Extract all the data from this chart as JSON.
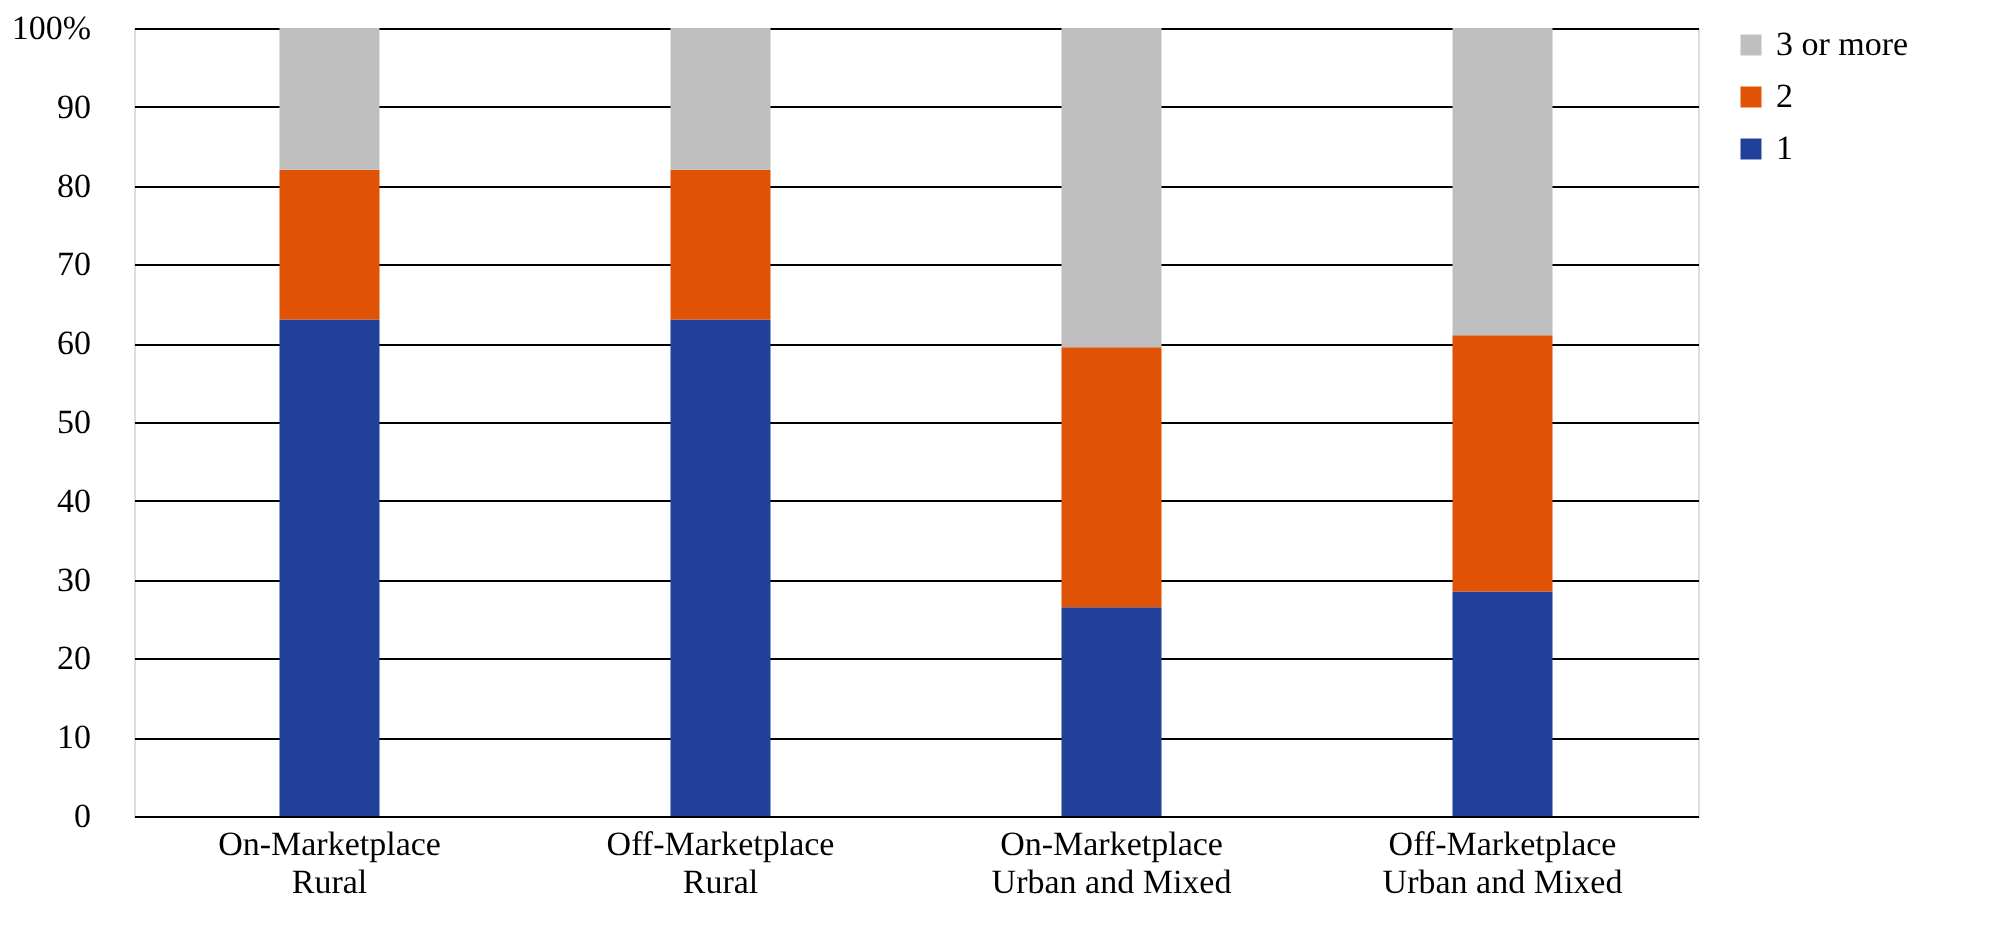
{
  "chart_data": {
    "type": "bar",
    "stacked": true,
    "categories": [
      "On-Marketplace\nRural",
      "Off-Marketplace\nRural",
      "On-Marketplace\nUrban and Mixed",
      "Off-Marketplace\nUrban and Mixed"
    ],
    "series": [
      {
        "name": "1",
        "color": "#21409a",
        "values": [
          63,
          63,
          26.5,
          28.5
        ]
      },
      {
        "name": "2",
        "color": "#e05206",
        "values": [
          19,
          19,
          33,
          32.5
        ]
      },
      {
        "name": "3 or more",
        "color": "#bfbfbf",
        "values": [
          18,
          18,
          40.5,
          39
        ]
      }
    ],
    "ylim": [
      0,
      100
    ],
    "yticks": [
      0,
      10,
      20,
      30,
      40,
      50,
      60,
      70,
      80,
      {
        "value": 90,
        "label": "90"
      },
      {
        "value": 100,
        "label": "100%"
      }
    ],
    "grid": "y",
    "legend": "right"
  }
}
